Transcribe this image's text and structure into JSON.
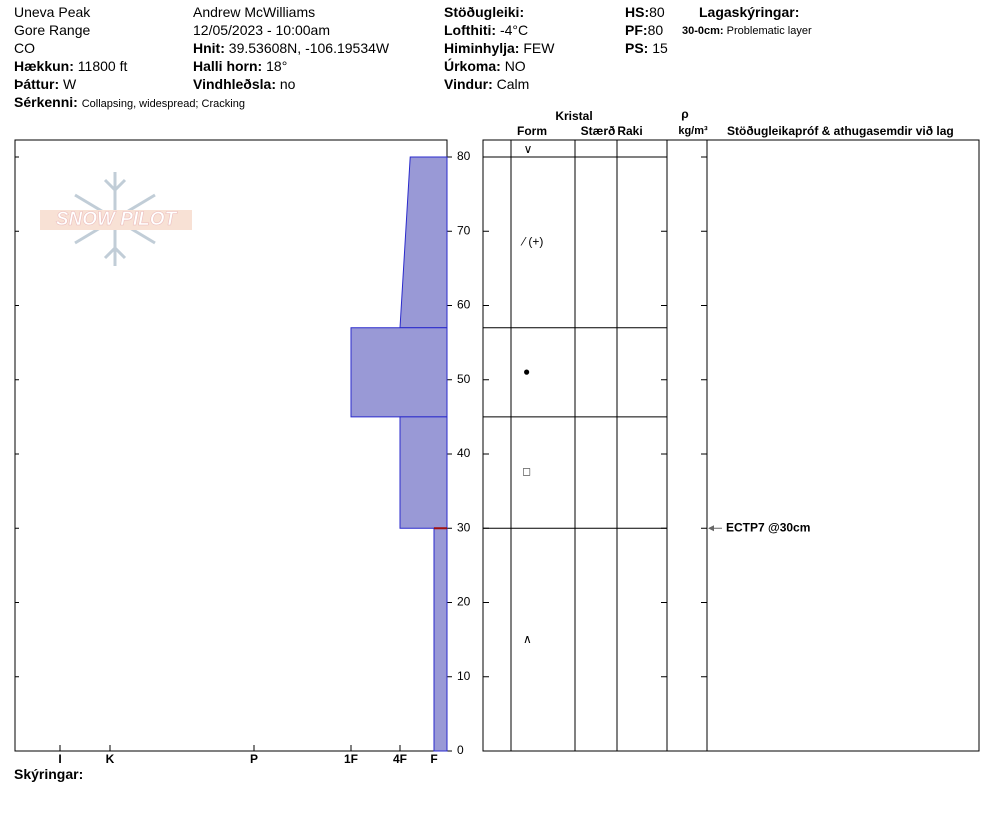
{
  "header": {
    "location": "Uneva Peak",
    "range": "Gore Range",
    "state": "CO",
    "elevation_label": "Hækkun:",
    "elevation": "11800 ft",
    "aspect_label": "Þáttur:",
    "aspect": "W",
    "features_label": "Sérkenni:",
    "features": "Collapsing, widespread;  Cracking",
    "observer": "Andrew McWilliams",
    "datetime": "12/05/2023 - 10:00am",
    "coords_label": "Hnit:",
    "coords": "39.53608N, -106.19534W",
    "slope_label": "Halli horn:",
    "slope": "18°",
    "wind_loading_label": "Vindhleðsla:",
    "wind_loading": "no",
    "stability_label": "Stöðugleiki:",
    "air_temp_label": "Lofthiti:",
    "air_temp": "-4°C",
    "sky_label": "Himinhylja:",
    "sky": "FEW",
    "precip_label": "Úrkoma:",
    "precip": "NO",
    "wind_label": "Vindur:",
    "wind": "Calm",
    "hs_label": "HS:",
    "hs": "80",
    "pf_label": "PF:",
    "pf": "80",
    "ps_label": "PS:",
    "ps": "15",
    "layer_notes_label": "Lagaskýringar:",
    "layer_note_range": "30-0cm:",
    "layer_note": "Problematic layer"
  },
  "logo": "SNOW PILOT",
  "columns": {
    "crystal": "Kristal",
    "form": "Form",
    "size": "Stærð",
    "moisture": "Raki",
    "density_symbol": "ρ",
    "density_unit": "kg/m³",
    "tests": "Stöðugleikapróf & athugasemdir við lag"
  },
  "footer": "Skýringar:",
  "chart_data": {
    "type": "snow-profile",
    "ylim": [
      0,
      80
    ],
    "yticks": [
      0,
      10,
      20,
      30,
      40,
      50,
      60,
      70,
      80
    ],
    "xlim": [
      0,
      6
    ],
    "xticks": [
      {
        "value": 6,
        "label": "I"
      },
      {
        "value": 5,
        "label": "K"
      },
      {
        "value": 4,
        "label": "P"
      },
      {
        "value": 3,
        "label": "1F"
      },
      {
        "value": 2,
        "label": "4F"
      },
      {
        "value": 1,
        "label": "F"
      }
    ],
    "color": "#9999d6",
    "surface_form": "∨",
    "layers": [
      {
        "top": 80,
        "bottom": 57,
        "hardness_top": 1.7,
        "hardness_bottom": 2,
        "form": "⁄ (+)"
      },
      {
        "top": 57,
        "bottom": 45,
        "hardness_top": 3,
        "hardness_bottom": 3,
        "form": "●"
      },
      {
        "top": 45,
        "bottom": 30,
        "hardness_top": 2,
        "hardness_bottom": 2,
        "form": "□"
      },
      {
        "top": 30,
        "bottom": 0,
        "hardness_top": 1,
        "hardness_bottom": 1,
        "form": "∧"
      }
    ],
    "tests": [
      {
        "depth": 30,
        "label": "ECTP7 @30cm"
      }
    ]
  }
}
